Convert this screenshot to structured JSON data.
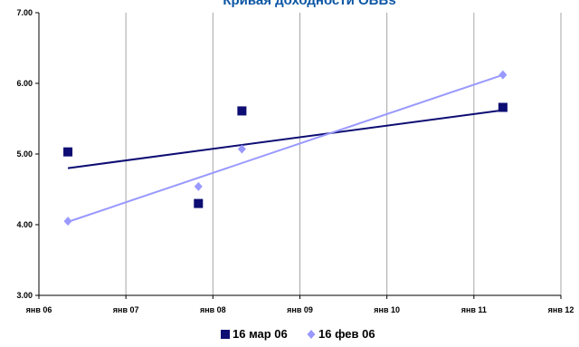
{
  "chart_data": {
    "type": "scatter",
    "title": "Кривая доходности OBBs",
    "xlabel": "",
    "ylabel": "",
    "x_ticks": [
      "янв 06",
      "янв 07",
      "янв 08",
      "янв 09",
      "янв 10",
      "янв 11",
      "янв 12"
    ],
    "y_ticks": [
      "3.00",
      "4.00",
      "5.00",
      "6.00",
      "7.00"
    ],
    "ylim": [
      3.0,
      7.0
    ],
    "xlim_years": [
      2006,
      2012
    ],
    "grid": "vertical",
    "legend_position": "bottom",
    "series": [
      {
        "name": "16 мар 06",
        "color": "#0d0d73",
        "marker": "square",
        "points": [
          {
            "x": "2006-05",
            "y": 5.03
          },
          {
            "x": "2007-11",
            "y": 4.3
          },
          {
            "x": "2008-05",
            "y": 5.61
          },
          {
            "x": "2011-05",
            "y": 5.66
          }
        ],
        "trendline": [
          {
            "x": "2006-05",
            "y": 4.8
          },
          {
            "x": "2011-05",
            "y": 5.62
          }
        ]
      },
      {
        "name": "16 фев 06",
        "color": "#9999ff",
        "marker": "diamond",
        "points": [
          {
            "x": "2006-05",
            "y": 4.05
          },
          {
            "x": "2007-11",
            "y": 4.54
          },
          {
            "x": "2008-05",
            "y": 5.07
          },
          {
            "x": "2011-05",
            "y": 6.12
          }
        ],
        "trendline": [
          {
            "x": "2006-05",
            "y": 4.04
          },
          {
            "x": "2011-05",
            "y": 6.12
          }
        ]
      }
    ]
  }
}
